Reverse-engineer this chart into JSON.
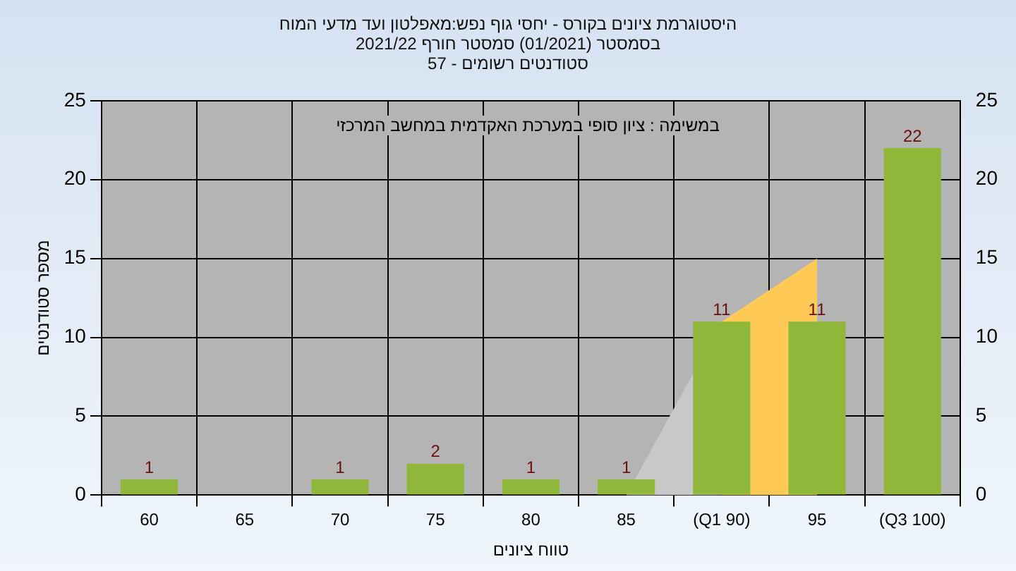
{
  "chart_data": {
    "type": "bar",
    "title": "היסטוגרמת ציונים בקורס - יחסי גוף נפש:מאפלטון ועד מדעי המוח\nבסמסטר  (01/2021)  סמסטר חורף 2021/22\nסטודנטים רשומים - 57",
    "xlabel": "טווח ציונים",
    "ylabel": "מספר סטודנטים",
    "annotations": [
      "במשימה : ציון סופי במערכת האקדמית במחשב המרכזי"
    ],
    "categories": [
      "60",
      "65",
      "70",
      "75",
      "80",
      "85",
      "(Q1 90)",
      "95",
      "(Q3 100)"
    ],
    "series": [
      {
        "type": "area",
        "color": "#c8c8c8",
        "values": [
          null,
          null,
          null,
          null,
          null,
          0,
          11,
          null,
          null
        ]
      },
      {
        "type": "area",
        "color": "#ffc955",
        "values": [
          null,
          null,
          null,
          null,
          null,
          null,
          11,
          15,
          null
        ]
      },
      {
        "color": "#8fb83a",
        "values": [
          1,
          null,
          1,
          2,
          1,
          1,
          11,
          11,
          22
        ],
        "value_labels": [
          "1",
          null,
          "1",
          "2",
          "1",
          "1",
          "11",
          "11",
          "22"
        ]
      }
    ],
    "ylim": [
      0,
      25
    ],
    "yticks": [
      0,
      5,
      10,
      15,
      20,
      25
    ],
    "y2lim": [
      0,
      25
    ],
    "y2ticks": [
      0,
      5,
      10,
      15,
      20,
      25
    ],
    "grid": true,
    "legend": false
  }
}
